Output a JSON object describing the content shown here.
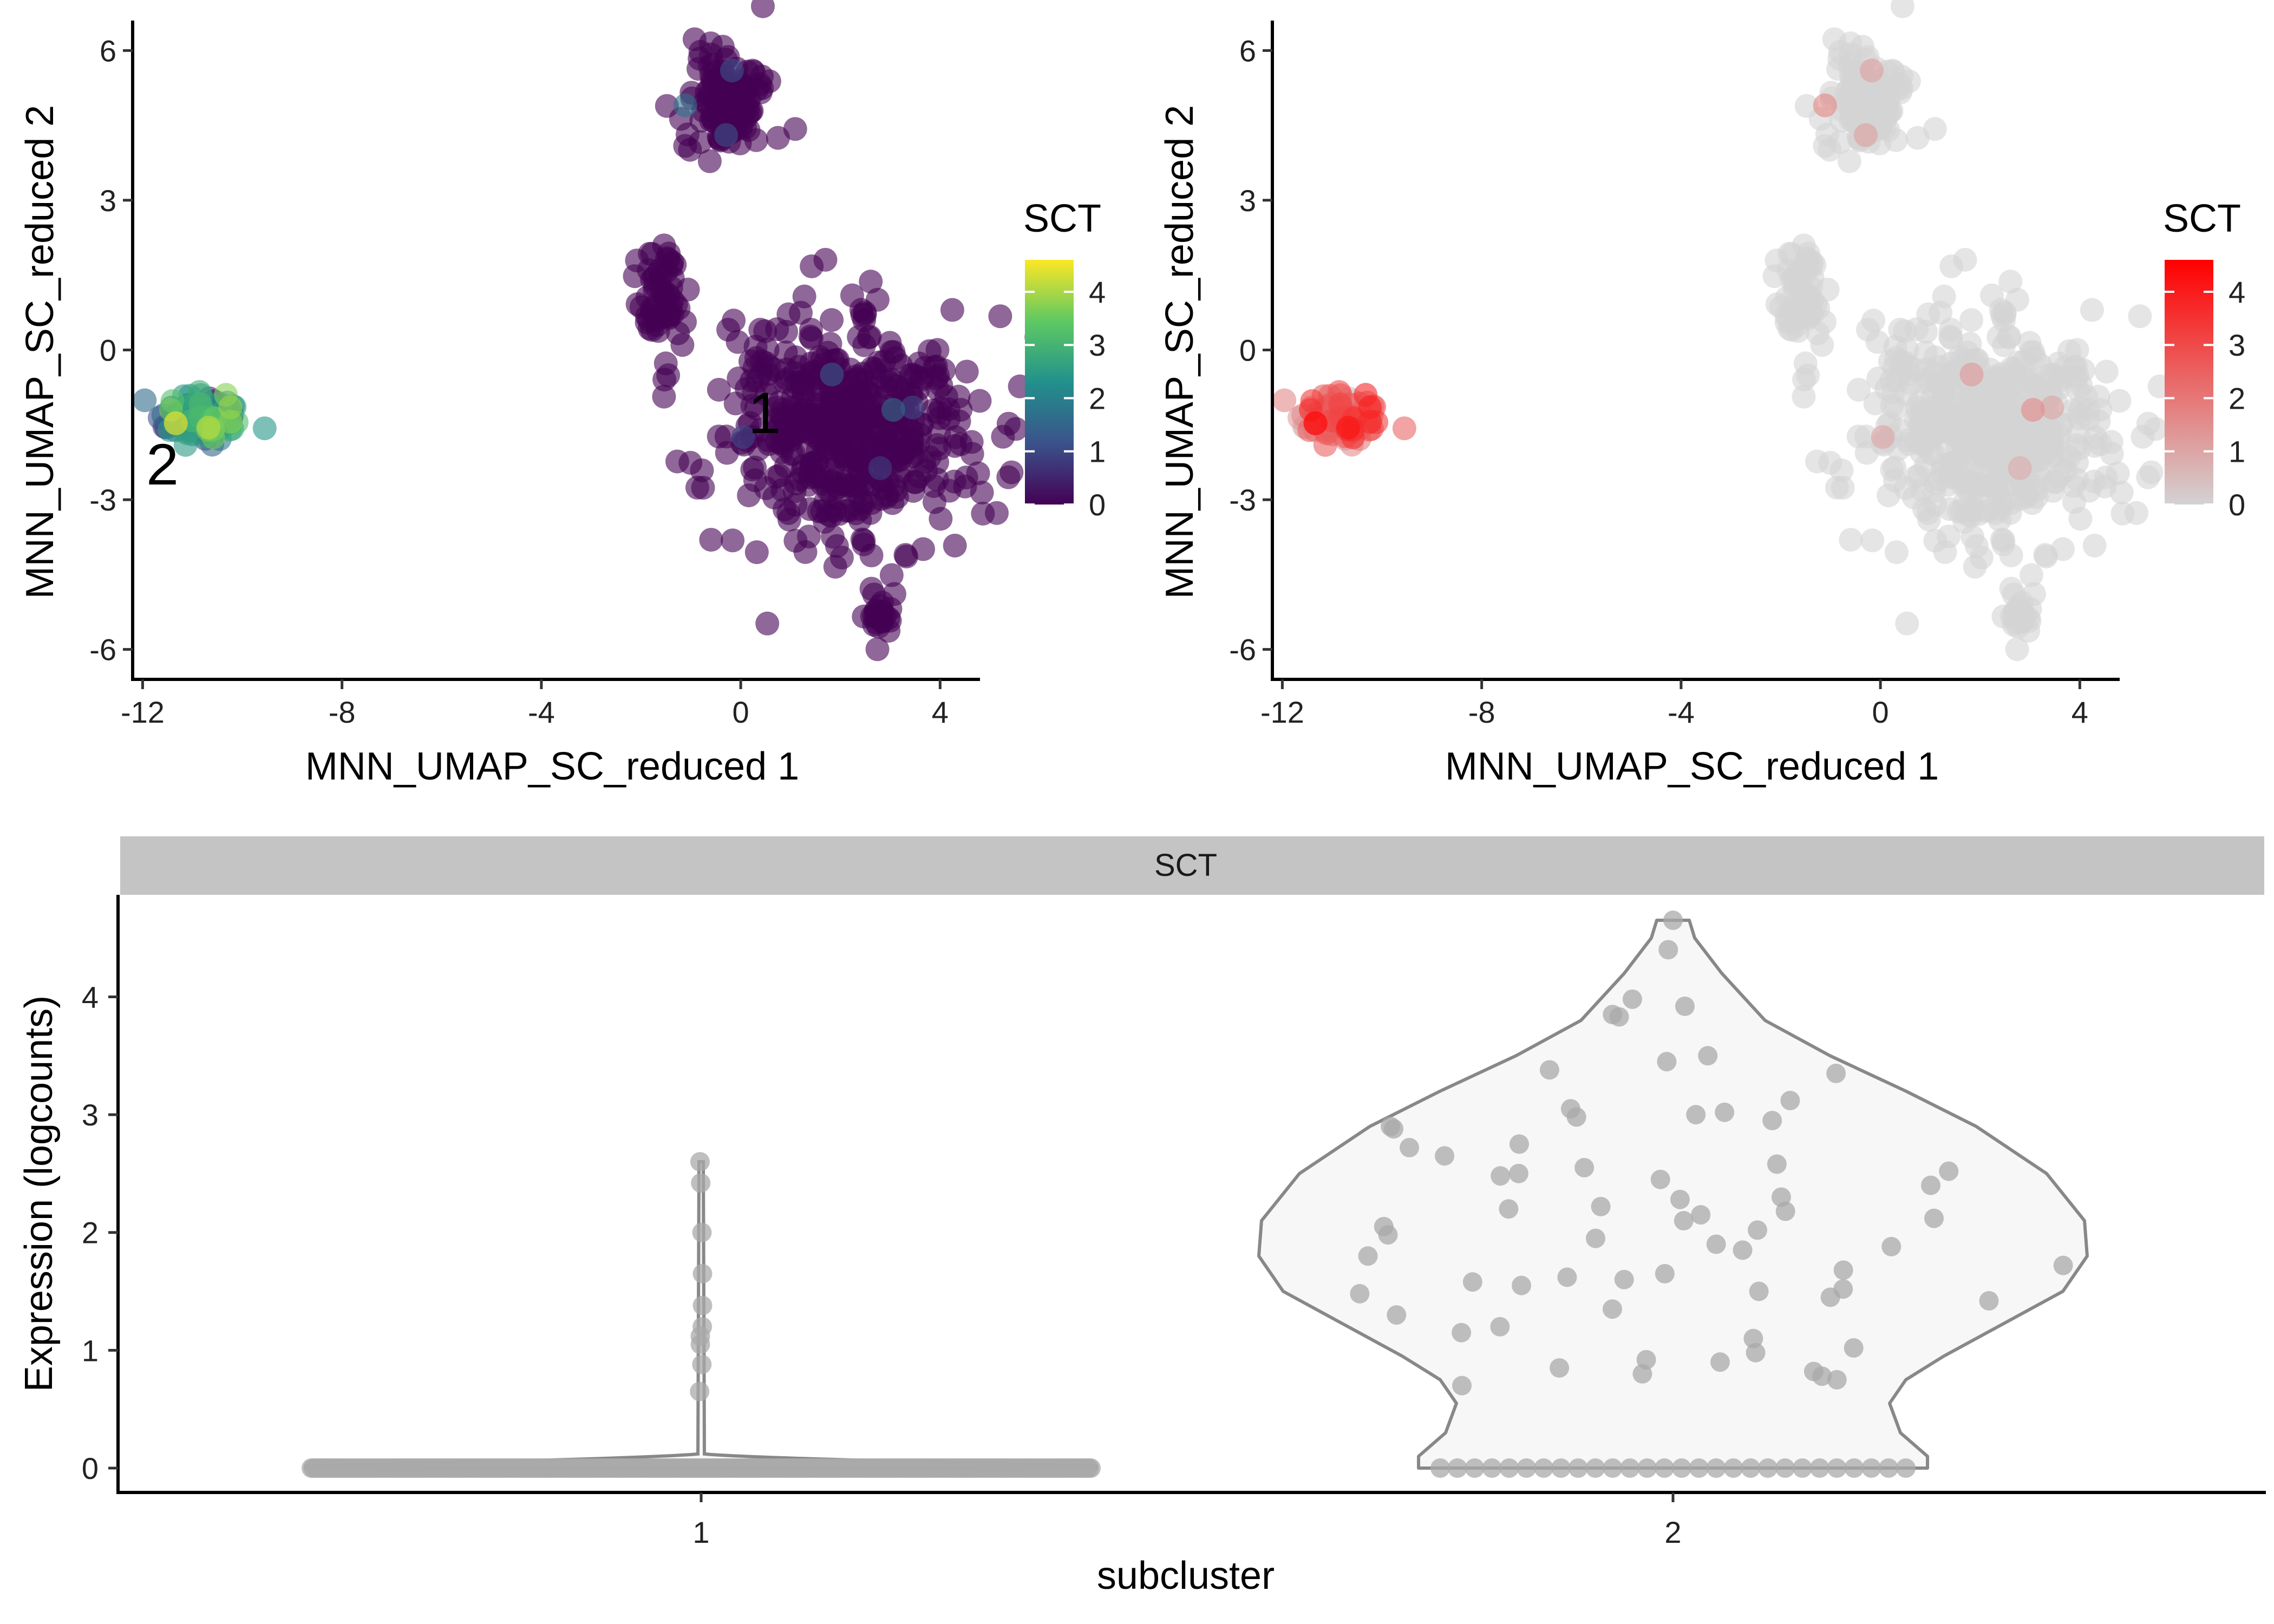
{
  "chart_data": [
    {
      "type": "scatter",
      "panel": "umap-viridis",
      "xlabel": "MNN_UMAP_SC_reduced 1",
      "ylabel": "MNN_UMAP_SC_reduced 2",
      "xlim": [
        -12.2,
        4.8
      ],
      "ylim": [
        -6.6,
        6.6
      ],
      "xticks": [
        -12,
        -8,
        -4,
        0,
        4
      ],
      "yticks": [
        -6,
        -3,
        0,
        3,
        6
      ],
      "legend": {
        "title": "SCT",
        "ticks": [
          0,
          1,
          2,
          3,
          4
        ],
        "range": [
          0,
          4.6
        ],
        "palette": "viridis",
        "position": "right"
      },
      "cluster_labels": [
        {
          "text": "2",
          "x": -11.4,
          "y": -2.1
        },
        {
          "text": "1",
          "x": 0.6,
          "y": -1.1
        }
      ],
      "clusters": [
        {
          "name": "2",
          "cx": -10.8,
          "cy": -1.35,
          "sx": 0.45,
          "sy": 0.3,
          "n": 90,
          "expr_mean": 2.0
        },
        {
          "name": "1",
          "cx": 2.2,
          "cy": -1.5,
          "sx": 1.2,
          "sy": 1.1,
          "n": 520,
          "expr_mean": 0.0
        },
        {
          "name": "1",
          "cx": -0.3,
          "cy": 5.0,
          "sx": 0.45,
          "sy": 0.55,
          "n": 120,
          "expr_mean": 0.0
        },
        {
          "name": "1",
          "cx": -1.6,
          "cy": 1.0,
          "sx": 0.25,
          "sy": 0.7,
          "n": 60,
          "expr_mean": 0.0
        },
        {
          "name": "1",
          "cx": 2.8,
          "cy": -5.3,
          "sx": 0.15,
          "sy": 0.25,
          "n": 25,
          "expr_mean": 0.0
        }
      ]
    },
    {
      "type": "scatter",
      "panel": "umap-red",
      "xlabel": "MNN_UMAP_SC_reduced 1",
      "ylabel": "MNN_UMAP_SC_reduced 2",
      "xlim": [
        -12.2,
        4.8
      ],
      "ylim": [
        -6.6,
        6.6
      ],
      "xticks": [
        -12,
        -8,
        -4,
        0,
        4
      ],
      "yticks": [
        -6,
        -3,
        0,
        3,
        6
      ],
      "legend": {
        "title": "SCT",
        "ticks": [
          0,
          1,
          2,
          3,
          4
        ],
        "range": [
          0,
          4.6
        ],
        "low_color": "#d3d3d3",
        "high_color": "#ff0000",
        "position": "right"
      }
    },
    {
      "type": "violin",
      "panel": "violin",
      "strip_label": "SCT",
      "xlabel": "subcluster",
      "ylabel": "Expression (logcounts)",
      "categories": [
        "1",
        "2"
      ],
      "ylim": [
        -0.3,
        4.85
      ],
      "yticks": [
        0,
        1,
        2,
        3,
        4
      ],
      "series": [
        {
          "name": "1",
          "max": 2.6,
          "nonzero_values": [
            2.6,
            2.42,
            2.0,
            1.65,
            1.38,
            1.2,
            1.12,
            1.05,
            0.88,
            0.65
          ],
          "zeros": 400
        },
        {
          "name": "2",
          "max": 4.65,
          "nonzero_values": [
            4.65,
            4.4,
            3.98,
            3.92,
            3.85,
            3.83,
            3.5,
            3.45,
            3.38,
            3.35,
            3.12,
            3.05,
            3.02,
            3.0,
            2.98,
            2.95,
            2.9,
            2.88,
            2.75,
            2.72,
            2.65,
            2.58,
            2.55,
            2.52,
            2.5,
            2.48,
            2.45,
            2.4,
            2.3,
            2.28,
            2.22,
            2.2,
            2.18,
            2.15,
            2.12,
            2.1,
            2.05,
            2.02,
            1.98,
            1.95,
            1.9,
            1.88,
            1.85,
            1.8,
            1.72,
            1.68,
            1.65,
            1.62,
            1.6,
            1.58,
            1.55,
            1.52,
            1.5,
            1.48,
            1.45,
            1.42,
            1.35,
            1.3,
            1.2,
            1.15,
            1.1,
            1.02,
            0.98,
            0.92,
            0.9,
            0.85,
            0.82,
            0.8,
            0.78,
            0.75,
            0.7
          ],
          "zeros": 28
        }
      ]
    }
  ]
}
